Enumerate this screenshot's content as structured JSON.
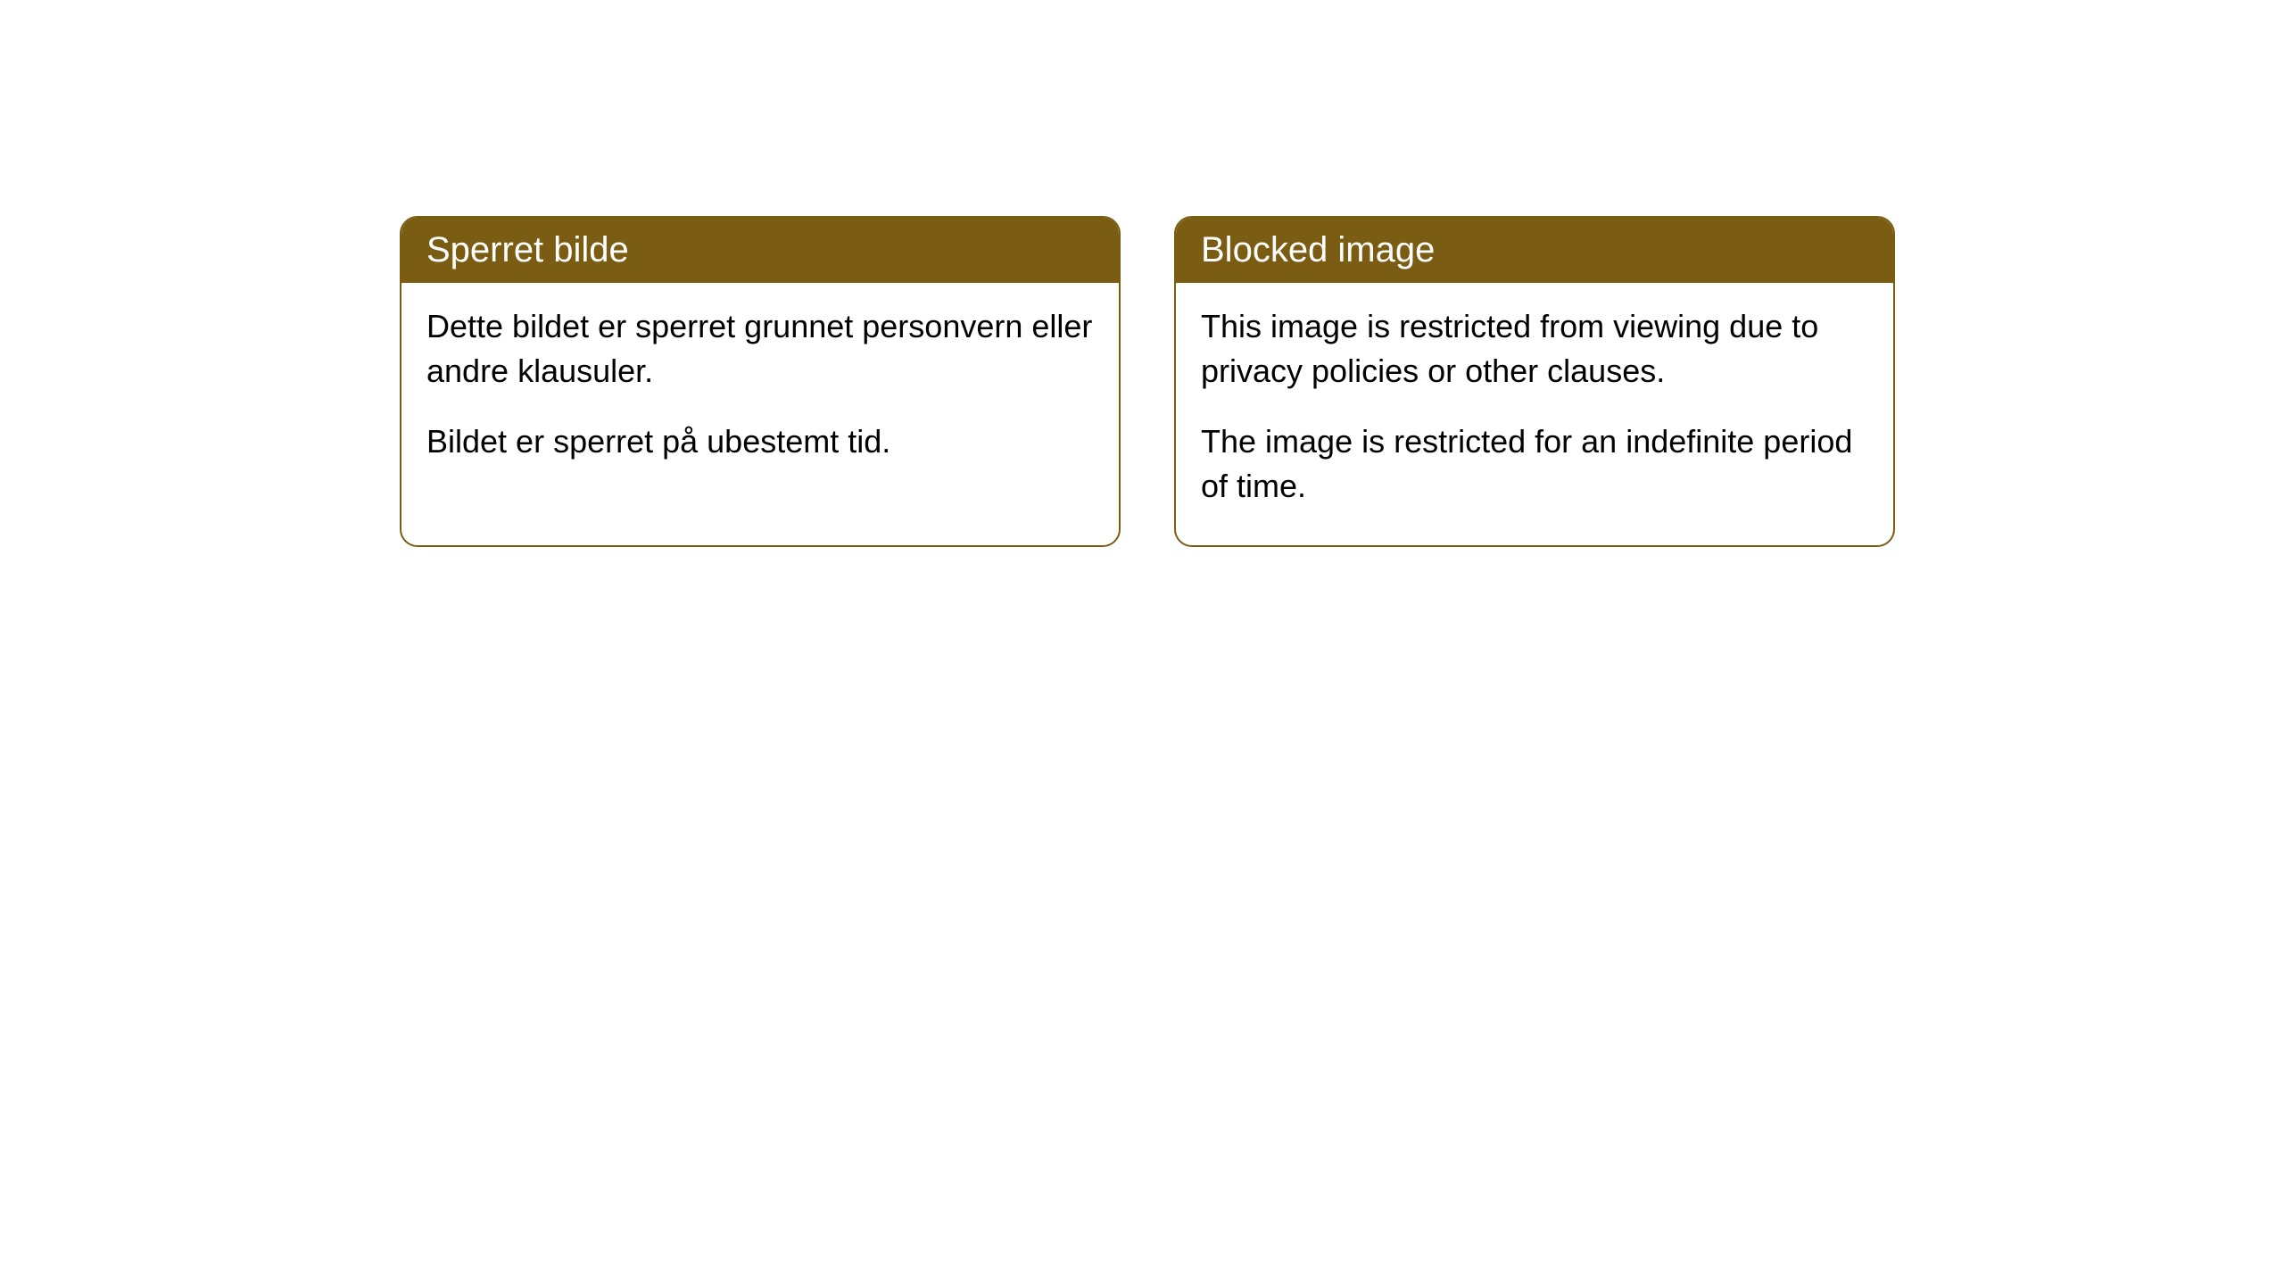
{
  "cards": [
    {
      "title": "Sperret bilde",
      "paragraph1": "Dette bildet er sperret grunnet personvern eller andre klausuler.",
      "paragraph2": "Bildet er sperret på ubestemt tid."
    },
    {
      "title": "Blocked image",
      "paragraph1": "This image is restricted from viewing due to privacy policies or other clauses.",
      "paragraph2": "The image is restricted for an indefinite period of time."
    }
  ],
  "styling": {
    "header_background": "#7a5d13",
    "header_text_color": "#ffffff",
    "border_color": "#7a5d13",
    "body_background": "#ffffff",
    "body_text_color": "#000000",
    "border_radius": "20px",
    "header_fontsize": 40,
    "body_fontsize": 36
  }
}
